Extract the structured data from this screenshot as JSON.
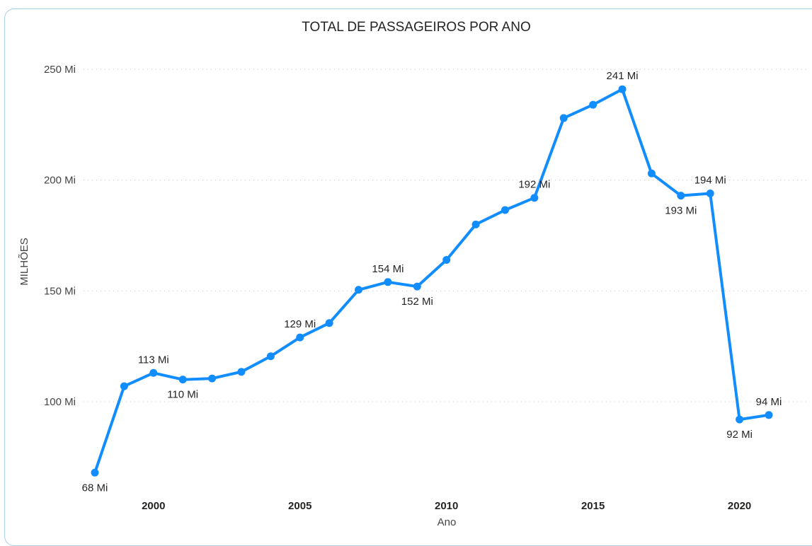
{
  "chart_data": {
    "type": "line",
    "title": "TOTAL DE PASSAGEIROS POR ANO",
    "xlabel": "Ano",
    "ylabel": "MILHÕES",
    "xlim": [
      1998,
      2021
    ],
    "ylim": [
      63,
      256
    ],
    "y_ticks": [
      {
        "value": 100,
        "label": "100 Mi"
      },
      {
        "value": 150,
        "label": "150 Mi"
      },
      {
        "value": 200,
        "label": "200 Mi"
      },
      {
        "value": 250,
        "label": "250 Mi"
      }
    ],
    "x_ticks": [
      {
        "value": 2000,
        "label": "2000"
      },
      {
        "value": 2005,
        "label": "2005"
      },
      {
        "value": 2010,
        "label": "2010"
      },
      {
        "value": 2015,
        "label": "2015"
      },
      {
        "value": 2020,
        "label": "2020"
      }
    ],
    "grid": true,
    "series": [
      {
        "color": "#118DFF",
        "points": [
          {
            "x": 1998,
            "y": 68,
            "label": "68 Mi",
            "label_pos": "below"
          },
          {
            "x": 1999,
            "y": 107
          },
          {
            "x": 2000,
            "y": 113,
            "label": "113 Mi",
            "label_pos": "above"
          },
          {
            "x": 2001,
            "y": 110,
            "label": "110 Mi",
            "label_pos": "below"
          },
          {
            "x": 2002,
            "y": 110.5
          },
          {
            "x": 2003,
            "y": 113.5
          },
          {
            "x": 2004,
            "y": 120.5
          },
          {
            "x": 2005,
            "y": 129,
            "label": "129 Mi",
            "label_pos": "above"
          },
          {
            "x": 2006,
            "y": 135.5
          },
          {
            "x": 2007,
            "y": 150.5
          },
          {
            "x": 2008,
            "y": 154,
            "label": "154 Mi",
            "label_pos": "above"
          },
          {
            "x": 2009,
            "y": 152,
            "label": "152 Mi",
            "label_pos": "below"
          },
          {
            "x": 2010,
            "y": 164
          },
          {
            "x": 2011,
            "y": 180
          },
          {
            "x": 2012,
            "y": 186.5
          },
          {
            "x": 2013,
            "y": 192,
            "label": "192 Mi",
            "label_pos": "above"
          },
          {
            "x": 2014,
            "y": 228
          },
          {
            "x": 2015,
            "y": 234
          },
          {
            "x": 2016,
            "y": 241,
            "label": "241 Mi",
            "label_pos": "above"
          },
          {
            "x": 2017,
            "y": 203
          },
          {
            "x": 2018,
            "y": 193,
            "label": "193 Mi",
            "label_pos": "below"
          },
          {
            "x": 2019,
            "y": 194,
            "label": "194 Mi",
            "label_pos": "above"
          },
          {
            "x": 2020,
            "y": 92,
            "label": "92 Mi",
            "label_pos": "below"
          },
          {
            "x": 2021,
            "y": 94,
            "label": "94 Mi",
            "label_pos": "above"
          }
        ]
      }
    ]
  }
}
